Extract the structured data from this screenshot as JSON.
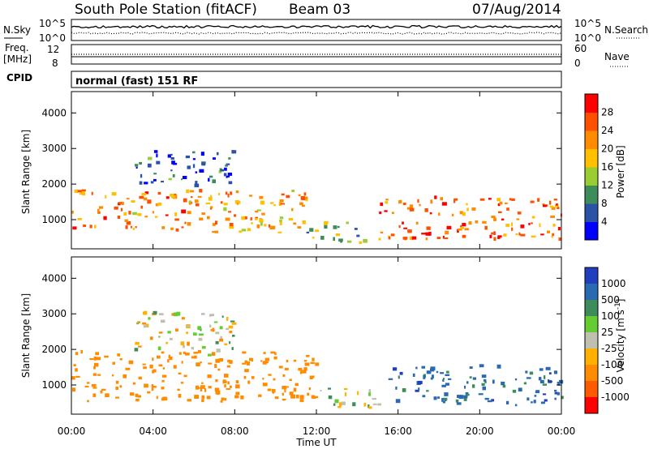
{
  "header": {
    "station": "South Pole Station (fitACF)",
    "beam": "Beam 03",
    "date": "07/Aug/2014"
  },
  "top_panels": {
    "nsky_label": "N.Sky",
    "nsearch_label": "N.Search",
    "noise_ticks_left": [
      "10^5",
      "10^0"
    ],
    "noise_ticks_right": [
      "10^5",
      "10^0"
    ],
    "freq_label_1": "Freq.",
    "freq_label_2": "[MHz]",
    "freq_ticks": [
      "12",
      "8"
    ],
    "nave_label": "Nave",
    "nave_ticks": [
      "60",
      "0"
    ],
    "cpid_label": "CPID",
    "cpid_text": "normal (fast) 151 RF"
  },
  "power_panel": {
    "ylabel": "Slant Range [km]",
    "yticks": [
      "1000",
      "2000",
      "3000",
      "4000"
    ],
    "colorbar_label": "Power [dB]",
    "colorbar_ticks": [
      "4",
      "8",
      "12",
      "16",
      "20",
      "24",
      "28"
    ],
    "colorbar_colors": [
      "#0000ff",
      "#2a53a8",
      "#3d8c5a",
      "#9acd32",
      "#ffc000",
      "#ff8c00",
      "#ff5000",
      "#ff0000"
    ]
  },
  "velocity_panel": {
    "ylabel": "Slant Range [km]",
    "yticks": [
      "1000",
      "2000",
      "3000",
      "4000"
    ],
    "colorbar_label": "Velocity [m s",
    "colorbar_label_sup": "-1",
    "colorbar_label_end": "]",
    "colorbar_ticks": [
      "1000",
      "500",
      "100",
      "25",
      "-25",
      "-100",
      "-500",
      "-1000"
    ],
    "colorbar_colors": [
      "#1f3fbf",
      "#2a6ab0",
      "#3d8c5a",
      "#66cc33",
      "#c0c0b0",
      "#ffb000",
      "#ff8c00",
      "#ff5a00",
      "#ff0000"
    ]
  },
  "xaxis": {
    "ticks": [
      "00:00",
      "04:00",
      "08:00",
      "12:00",
      "16:00",
      "20:00",
      "00:00"
    ],
    "label": "Time UT"
  },
  "chart_data": [
    {
      "type": "heatmap",
      "title": "",
      "xlabel": "Time UT",
      "ylabel": "Slant Range [km]",
      "x_range_hours_ut": [
        0,
        24
      ],
      "ylim_km": [
        180,
        4600
      ],
      "value": "Power [dB]",
      "scale_ticks": [
        4,
        8,
        12,
        16,
        20,
        24,
        28
      ],
      "scatter_regions": [
        {
          "t_start": 0.0,
          "t_end": 11.5,
          "range_km": [
            600,
            1800
          ],
          "typical_dB": 22
        },
        {
          "t_start": 3.0,
          "t_end": 8.0,
          "range_km": [
            1900,
            2900
          ],
          "typical_dB": 6
        },
        {
          "t_start": 11.5,
          "t_end": 14.5,
          "range_km": [
            300,
            900
          ],
          "typical_dB": 12
        },
        {
          "t_start": 15.0,
          "t_end": 24.0,
          "range_km": [
            400,
            1600
          ],
          "typical_dB": 24
        }
      ]
    },
    {
      "type": "heatmap",
      "title": "",
      "xlabel": "Time UT",
      "ylabel": "Slant Range [km]",
      "x_range_hours_ut": [
        0,
        24
      ],
      "ylim_km": [
        180,
        4600
      ],
      "value": "Velocity [m s-1]",
      "scale_ticks": [
        1000,
        500,
        100,
        25,
        -25,
        -100,
        -500,
        -1000
      ],
      "scatter_regions": [
        {
          "t_start": 0.0,
          "t_end": 12.0,
          "range_km": [
            500,
            1900
          ],
          "typical_ms": -300
        },
        {
          "t_start": 3.0,
          "t_end": 8.0,
          "range_km": [
            1800,
            3000
          ],
          "typical_ms": 0
        },
        {
          "t_start": 12.0,
          "t_end": 15.0,
          "range_km": [
            300,
            900
          ],
          "typical_ms": 60
        },
        {
          "t_start": 15.5,
          "t_end": 24.0,
          "range_km": [
            400,
            1500
          ],
          "typical_ms": 700
        }
      ]
    }
  ]
}
